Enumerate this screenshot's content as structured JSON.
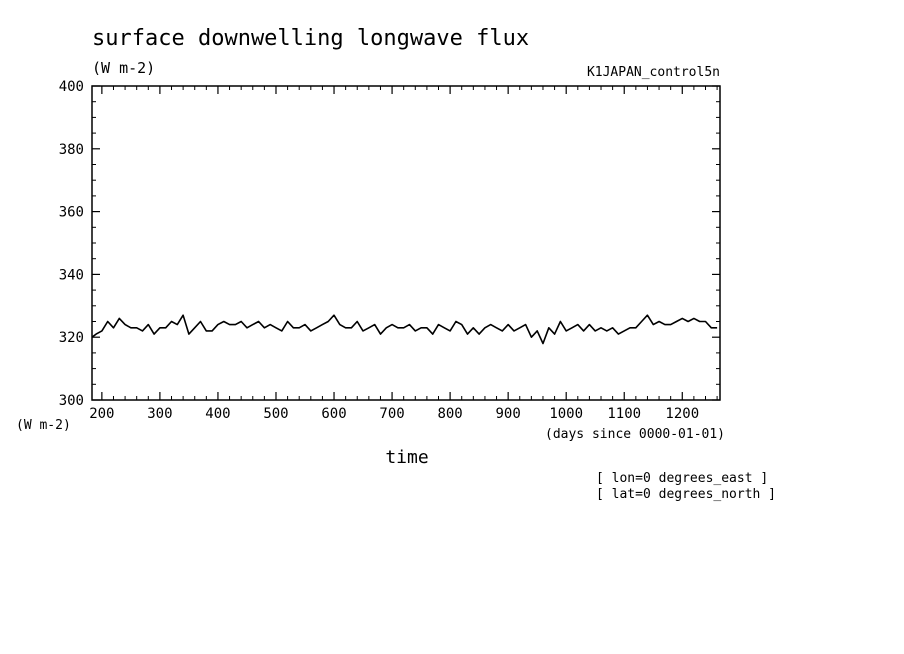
{
  "chart_data": {
    "type": "line",
    "title": "surface downwelling longwave flux",
    "units_top": "(W m-2)",
    "units_bottom": "(W m-2)",
    "experiment": "K1JAPAN_control5n",
    "xlabel": "time",
    "xunits": "(days since 0000-01-01)",
    "notes": [
      "[ lon=0 degrees_east ]",
      "[ lat=0 degrees_north ]"
    ],
    "xlim": [
      183,
      1265
    ],
    "ylim": [
      300,
      400
    ],
    "xticks": [
      200,
      300,
      400,
      500,
      600,
      700,
      800,
      900,
      1000,
      1100,
      1200
    ],
    "yticks": [
      300,
      320,
      340,
      360,
      380,
      400
    ],
    "grid": false,
    "series": [
      {
        "color": "#000000",
        "x": [
          183,
          190,
          200,
          210,
          220,
          230,
          240,
          250,
          260,
          270,
          280,
          290,
          300,
          310,
          320,
          330,
          340,
          350,
          360,
          370,
          380,
          390,
          400,
          410,
          420,
          430,
          440,
          450,
          460,
          470,
          480,
          490,
          500,
          510,
          520,
          530,
          540,
          550,
          560,
          570,
          580,
          590,
          600,
          610,
          620,
          630,
          640,
          650,
          660,
          670,
          680,
          690,
          700,
          710,
          720,
          730,
          740,
          750,
          760,
          770,
          780,
          790,
          800,
          810,
          820,
          830,
          840,
          850,
          860,
          870,
          880,
          890,
          900,
          910,
          920,
          930,
          940,
          950,
          960,
          970,
          980,
          990,
          1000,
          1010,
          1020,
          1030,
          1040,
          1050,
          1060,
          1070,
          1080,
          1090,
          1100,
          1110,
          1120,
          1130,
          1140,
          1150,
          1160,
          1170,
          1180,
          1190,
          1200,
          1210,
          1220,
          1230,
          1240,
          1250,
          1260
        ],
        "y": [
          320,
          321,
          322,
          325,
          323,
          326,
          324,
          323,
          323,
          322,
          324,
          321,
          323,
          323,
          325,
          324,
          327,
          321,
          323,
          325,
          322,
          322,
          324,
          325,
          324,
          324,
          325,
          323,
          324,
          325,
          323,
          324,
          323,
          322,
          325,
          323,
          323,
          324,
          322,
          323,
          324,
          325,
          327,
          324,
          323,
          323,
          325,
          322,
          323,
          324,
          321,
          323,
          324,
          323,
          323,
          324,
          322,
          323,
          323,
          321,
          324,
          323,
          322,
          325,
          324,
          321,
          323,
          321,
          323,
          324,
          323,
          322,
          324,
          322,
          323,
          324,
          320,
          322,
          318,
          323,
          321,
          325,
          322,
          323,
          324,
          322,
          324,
          322,
          323,
          322,
          323,
          321,
          322,
          323,
          323,
          325,
          327,
          324,
          325,
          324,
          324,
          325,
          326,
          325,
          326,
          325,
          325,
          323,
          323
        ]
      }
    ]
  }
}
